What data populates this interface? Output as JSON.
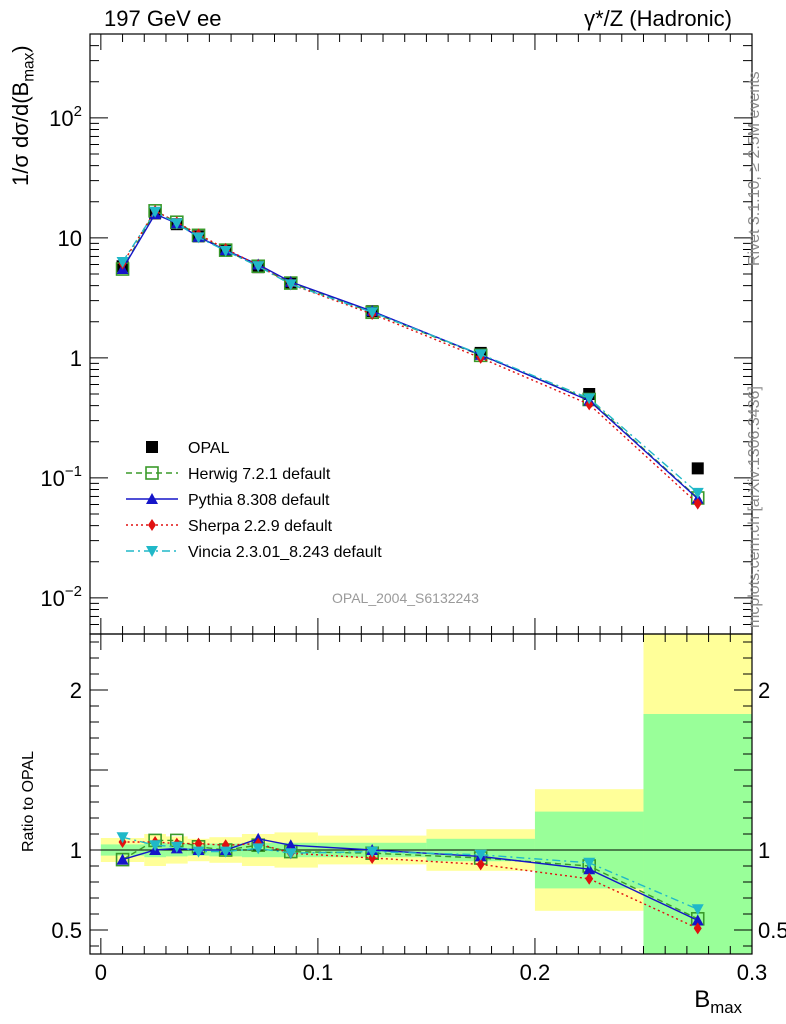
{
  "header": {
    "left_title": "197 GeV ee",
    "right_title": "γ*/Z (Hadronic)"
  },
  "side_text": {
    "rivet": "Rivet 3.1.10, ≥ 2.5M events",
    "mcplots": "mcplots.cern.ch [arXiv:1306.3436]"
  },
  "watermark": "OPAL_2004_S6132243",
  "chart_data": [
    {
      "type": "scatter",
      "panel": "main",
      "ylabel": "1/σ dσ/d(B_max)",
      "yscale": "log",
      "ylim": [
        0.005,
        500
      ],
      "xlim": [
        -0.005,
        0.3
      ],
      "y_tick_labels": [
        "10^-2",
        "10^-1",
        "1",
        "10",
        "10^2"
      ],
      "x": [
        0.01,
        0.025,
        0.035,
        0.045,
        0.0575,
        0.0725,
        0.0875,
        0.125,
        0.175,
        0.225,
        0.275
      ],
      "series": [
        {
          "name": "OPAL",
          "color": "#000000",
          "marker": "square",
          "line": "none",
          "values": [
            5.8,
            16.0,
            13.0,
            10.3,
            7.9,
            5.7,
            4.2,
            2.45,
            1.1,
            0.5,
            0.12
          ]
        },
        {
          "name": "Herwig 7.2.1 default",
          "color": "#3a9a2a",
          "marker": "open-square",
          "line": "dashed",
          "values": [
            5.5,
            16.8,
            13.5,
            10.5,
            7.9,
            5.8,
            4.2,
            2.4,
            1.05,
            0.45,
            0.068
          ]
        },
        {
          "name": "Pythia 8.308 default",
          "color": "#1515c8",
          "marker": "triangle-up",
          "line": "solid",
          "values": [
            5.5,
            15.8,
            13.2,
            10.2,
            7.9,
            6.0,
            4.3,
            2.45,
            1.06,
            0.44,
            0.067
          ]
        },
        {
          "name": "Sherpa 2.2.9 default",
          "color": "#e01010",
          "marker": "diamond",
          "line": "dotted",
          "values": [
            6.1,
            16.8,
            13.5,
            10.7,
            8.1,
            5.9,
            4.1,
            2.32,
            1.0,
            0.41,
            0.061
          ]
        },
        {
          "name": "Vincia 2.3.01_8.243 default",
          "color": "#20b8c8",
          "marker": "triangle-down",
          "line": "dash-dot",
          "values": [
            6.3,
            16.5,
            13.2,
            10.1,
            7.8,
            5.8,
            4.1,
            2.4,
            1.07,
            0.46,
            0.075
          ]
        }
      ]
    },
    {
      "type": "line",
      "panel": "ratio",
      "ylabel": "Ratio to OPAL",
      "xlabel": "B_max",
      "ylim": [
        0.35,
        2.35
      ],
      "xlim": [
        -0.005,
        0.3
      ],
      "x_tick_labels": [
        "0",
        "0.1",
        "0.2",
        "0.3"
      ],
      "y_tick_labels": [
        "0.5",
        "1",
        "2"
      ],
      "x": [
        0.01,
        0.025,
        0.035,
        0.045,
        0.0575,
        0.0725,
        0.0875,
        0.125,
        0.175,
        0.225,
        0.275
      ],
      "bin_edges": [
        0,
        0.02,
        0.03,
        0.04,
        0.05,
        0.065,
        0.08,
        0.1,
        0.15,
        0.2,
        0.25,
        0.3
      ],
      "band_green": [
        [
          0.965,
          1.035
        ],
        [
          0.955,
          1.045
        ],
        [
          0.96,
          1.04
        ],
        [
          0.965,
          1.035
        ],
        [
          0.96,
          1.04
        ],
        [
          0.955,
          1.045
        ],
        [
          0.955,
          1.045
        ],
        [
          0.955,
          1.045
        ],
        [
          0.93,
          1.07
        ],
        [
          0.76,
          1.24
        ],
        [
          0.35,
          1.85
        ]
      ],
      "band_yellow": [
        [
          0.925,
          1.075
        ],
        [
          0.9,
          1.1
        ],
        [
          0.915,
          1.085
        ],
        [
          0.93,
          1.07
        ],
        [
          0.92,
          1.08
        ],
        [
          0.9,
          1.1
        ],
        [
          0.89,
          1.11
        ],
        [
          0.91,
          1.09
        ],
        [
          0.87,
          1.13
        ],
        [
          0.62,
          1.38
        ],
        [
          0.35,
          2.35
        ]
      ],
      "series": [
        {
          "name": "Herwig 7.2.1 default",
          "values": [
            0.94,
            1.06,
            1.06,
            1.02,
            1.0,
            1.03,
            0.99,
            0.98,
            0.95,
            0.9,
            0.57
          ]
        },
        {
          "name": "Pythia 8.308 default",
          "values": [
            0.94,
            1.0,
            1.01,
            1.0,
            1.0,
            1.07,
            1.03,
            1.0,
            0.96,
            0.88,
            0.56
          ]
        },
        {
          "name": "Sherpa 2.2.9 default",
          "values": [
            1.05,
            1.05,
            1.04,
            1.04,
            1.03,
            1.04,
            0.98,
            0.95,
            0.91,
            0.82,
            0.51
          ]
        },
        {
          "name": "Vincia 2.3.01_8.243 default",
          "values": [
            1.08,
            1.03,
            1.02,
            0.99,
            0.99,
            1.01,
            0.98,
            0.99,
            0.97,
            0.92,
            0.63
          ]
        }
      ]
    }
  ]
}
